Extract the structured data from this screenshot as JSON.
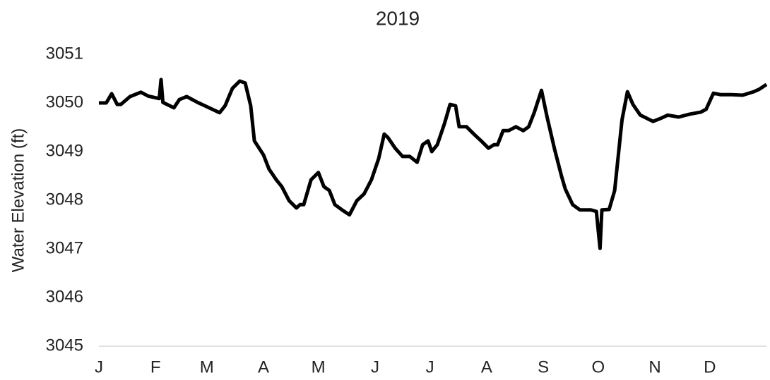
{
  "chart_data": {
    "type": "line",
    "title": "2019",
    "y_label": "Water Elevation (ft)",
    "x": [
      1,
      5,
      8,
      11,
      13,
      18,
      24,
      28,
      34,
      35,
      36,
      42,
      45,
      49,
      55,
      59,
      63,
      67,
      70,
      74,
      78,
      81,
      84,
      86,
      91,
      94,
      98,
      101,
      105,
      109,
      111,
      113,
      117,
      121,
      124,
      127,
      130,
      134,
      138,
      142,
      146,
      150,
      154,
      157,
      159,
      163,
      167,
      171,
      175,
      178,
      181,
      183,
      186,
      190,
      193,
      196,
      198,
      202,
      206,
      210,
      214,
      217,
      219,
      222,
      225,
      229,
      233,
      236,
      239,
      243,
      246,
      250,
      254,
      256,
      260,
      264,
      270,
      273,
      275,
      276,
      280,
      283,
      287,
      290,
      293,
      297,
      304,
      308,
      312,
      318,
      324,
      330,
      333,
      337,
      341,
      347,
      353,
      359,
      362,
      366
    ],
    "series": [
      {
        "name": "Water Elevation",
        "color": "#000000",
        "values": [
          3050.0,
          3050.0,
          3050.19,
          3049.97,
          3049.97,
          3050.13,
          3050.22,
          3050.14,
          3050.09,
          3050.48,
          3050.01,
          3049.9,
          3050.07,
          3050.13,
          3050.01,
          3049.94,
          3049.87,
          3049.8,
          3049.94,
          3050.3,
          3050.45,
          3050.41,
          3049.94,
          3049.22,
          3048.93,
          3048.64,
          3048.42,
          3048.28,
          3047.99,
          3047.84,
          3047.91,
          3047.91,
          3048.42,
          3048.57,
          3048.28,
          3048.2,
          3047.91,
          3047.8,
          3047.7,
          3047.99,
          3048.13,
          3048.42,
          3048.86,
          3049.36,
          3049.29,
          3049.07,
          3048.9,
          3048.9,
          3048.78,
          3049.14,
          3049.22,
          3049.0,
          3049.14,
          3049.58,
          3049.97,
          3049.94,
          3049.51,
          3049.51,
          3049.36,
          3049.22,
          3049.07,
          3049.14,
          3049.14,
          3049.43,
          3049.43,
          3049.51,
          3049.43,
          3049.51,
          3049.8,
          3050.26,
          3049.72,
          3049.07,
          3048.49,
          3048.23,
          3047.91,
          3047.8,
          3047.8,
          3047.77,
          3047.01,
          3047.8,
          3047.81,
          3048.2,
          3049.65,
          3050.23,
          3049.97,
          3049.75,
          3049.62,
          3049.68,
          3049.75,
          3049.71,
          3049.77,
          3049.81,
          3049.87,
          3050.2,
          3050.17,
          3050.17,
          3050.16,
          3050.23,
          3050.28,
          3050.38
        ]
      }
    ],
    "xlim": [
      1,
      366
    ],
    "xticks": [
      {
        "value": 1,
        "label": "J"
      },
      {
        "value": 32,
        "label": "F"
      },
      {
        "value": 60,
        "label": "M"
      },
      {
        "value": 91,
        "label": "A"
      },
      {
        "value": 121,
        "label": "M"
      },
      {
        "value": 152,
        "label": "J"
      },
      {
        "value": 182,
        "label": "J"
      },
      {
        "value": 213,
        "label": "A"
      },
      {
        "value": 244,
        "label": "S"
      },
      {
        "value": 274,
        "label": "O"
      },
      {
        "value": 305,
        "label": "N"
      },
      {
        "value": 335,
        "label": "D"
      }
    ],
    "ylim": [
      3045,
      3051
    ],
    "yticks": [
      3045,
      3046,
      3047,
      3048,
      3049,
      3050,
      3051
    ],
    "grid": false
  }
}
